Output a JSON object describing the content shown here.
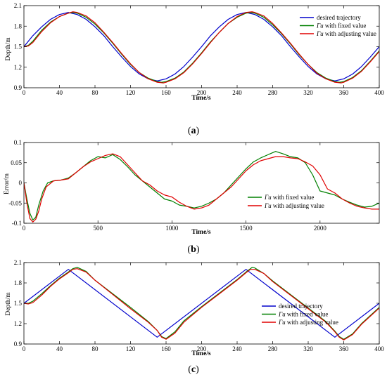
{
  "chart_data": [
    {
      "type": "line",
      "caption": "a",
      "xlabel": "Time/s",
      "ylabel": "Depth/m",
      "xlim": [
        0,
        400
      ],
      "ylim": [
        0.9,
        2.1
      ],
      "xticks": [
        0,
        40,
        80,
        120,
        160,
        200,
        240,
        280,
        320,
        360,
        400
      ],
      "yticks": [
        0.9,
        1.2,
        1.5,
        1.8,
        2.1
      ],
      "ytick_labels": [
        "0.9",
        "1.2",
        "1.5",
        "1.8",
        "2.1"
      ],
      "legend_position": "top-right",
      "series": [
        {
          "name": "desired trajectory",
          "legend_sym": "",
          "legend_rest": "desired trajectory",
          "color": "#0000cc",
          "x": [
            0,
            10,
            20,
            30,
            40,
            50,
            60,
            70,
            80,
            90,
            100,
            110,
            120,
            130,
            140,
            150,
            160,
            170,
            180,
            190,
            200,
            210,
            220,
            230,
            240,
            250,
            260,
            270,
            280,
            290,
            300,
            310,
            320,
            330,
            340,
            350,
            360,
            370,
            380,
            390,
            400
          ],
          "y": [
            1.5,
            1.66,
            1.79,
            1.9,
            1.97,
            2.0,
            1.97,
            1.9,
            1.79,
            1.66,
            1.5,
            1.35,
            1.21,
            1.1,
            1.03,
            1.0,
            1.03,
            1.1,
            1.21,
            1.35,
            1.5,
            1.66,
            1.79,
            1.9,
            1.97,
            2.0,
            1.97,
            1.9,
            1.79,
            1.66,
            1.5,
            1.35,
            1.21,
            1.1,
            1.03,
            1.0,
            1.03,
            1.1,
            1.21,
            1.35,
            1.5
          ]
        },
        {
          "name": "Γu with fixed value",
          "legend_sym": "Γu",
          "legend_rest": " with fixed value",
          "color": "#008000",
          "x": [
            0,
            5,
            10,
            20,
            30,
            40,
            50,
            55,
            60,
            70,
            80,
            90,
            100,
            110,
            120,
            130,
            140,
            150,
            155,
            160,
            170,
            180,
            190,
            200,
            210,
            220,
            230,
            240,
            250,
            255,
            260,
            270,
            280,
            290,
            300,
            310,
            320,
            330,
            340,
            350,
            355,
            360,
            370,
            380,
            390,
            400
          ],
          "y": [
            1.5,
            1.52,
            1.58,
            1.74,
            1.86,
            1.94,
            1.99,
            2.0,
            1.99,
            1.93,
            1.83,
            1.7,
            1.55,
            1.39,
            1.24,
            1.12,
            1.04,
            0.99,
            0.98,
            0.99,
            1.04,
            1.13,
            1.26,
            1.41,
            1.57,
            1.71,
            1.84,
            1.93,
            1.99,
            2.0,
            1.99,
            1.93,
            1.82,
            1.69,
            1.54,
            1.38,
            1.24,
            1.12,
            1.04,
            0.99,
            0.98,
            0.99,
            1.05,
            1.15,
            1.29,
            1.44
          ]
        },
        {
          "name": "Γu with adjusting value",
          "legend_sym": "Γu",
          "legend_rest": " with adjusting value",
          "color": "#e00000",
          "x": [
            0,
            5,
            10,
            20,
            30,
            40,
            50,
            55,
            60,
            70,
            80,
            90,
            100,
            110,
            120,
            130,
            140,
            150,
            157,
            160,
            170,
            180,
            190,
            200,
            210,
            220,
            230,
            240,
            250,
            257,
            260,
            270,
            280,
            290,
            300,
            310,
            320,
            330,
            340,
            350,
            357,
            360,
            370,
            380,
            390,
            400
          ],
          "y": [
            1.5,
            1.51,
            1.56,
            1.72,
            1.85,
            1.94,
            1.99,
            2.01,
            2.0,
            1.95,
            1.85,
            1.71,
            1.56,
            1.4,
            1.25,
            1.12,
            1.03,
            0.98,
            0.97,
            0.98,
            1.03,
            1.12,
            1.25,
            1.4,
            1.56,
            1.71,
            1.84,
            1.94,
            2.0,
            2.01,
            2.0,
            1.95,
            1.84,
            1.7,
            1.55,
            1.39,
            1.24,
            1.11,
            1.03,
            0.98,
            0.97,
            0.98,
            1.04,
            1.14,
            1.28,
            1.43
          ]
        }
      ]
    },
    {
      "type": "line",
      "caption": "b",
      "xlabel": "Time/s",
      "ylabel": "Error/m",
      "xlim": [
        0,
        2400
      ],
      "ylim": [
        -0.1,
        0.1
      ],
      "xticks": [
        0,
        500,
        1000,
        1500,
        2000
      ],
      "yticks": [
        -0.1,
        -0.05,
        0,
        0.05,
        0.1
      ],
      "ytick_labels": [
        "-0.1",
        "-0.05",
        "0",
        "0.05",
        "0.1"
      ],
      "legend_position": "bottom-right",
      "series": [
        {
          "name": "Γu with fixed value",
          "legend_sym": "Γu",
          "legend_rest": " with fixed value",
          "color": "#008000",
          "x": [
            0,
            20,
            40,
            60,
            80,
            100,
            130,
            160,
            200,
            250,
            300,
            350,
            400,
            450,
            500,
            550,
            600,
            650,
            700,
            750,
            800,
            850,
            900,
            950,
            1000,
            1050,
            1100,
            1150,
            1200,
            1250,
            1300,
            1350,
            1400,
            1450,
            1500,
            1550,
            1600,
            1650,
            1700,
            1750,
            1800,
            1850,
            1900,
            1950,
            2000,
            2050,
            2100,
            2150,
            2200,
            2250,
            2300,
            2350,
            2400
          ],
          "y": [
            0.0,
            -0.04,
            -0.075,
            -0.092,
            -0.085,
            -0.055,
            -0.02,
            0.0,
            0.005,
            0.007,
            0.012,
            0.025,
            0.04,
            0.055,
            0.065,
            0.062,
            0.07,
            0.058,
            0.04,
            0.02,
            0.005,
            -0.01,
            -0.025,
            -0.04,
            -0.045,
            -0.055,
            -0.058,
            -0.062,
            -0.058,
            -0.05,
            -0.04,
            -0.025,
            -0.005,
            0.015,
            0.035,
            0.052,
            0.062,
            0.07,
            0.078,
            0.072,
            0.065,
            0.062,
            0.05,
            0.02,
            -0.02,
            -0.025,
            -0.03,
            -0.04,
            -0.048,
            -0.055,
            -0.06,
            -0.058,
            -0.05
          ]
        },
        {
          "name": "Γu with adjusting value",
          "legend_sym": "Γu",
          "legend_rest": " with adjusting value",
          "color": "#e00000",
          "x": [
            0,
            20,
            40,
            60,
            80,
            100,
            120,
            150,
            200,
            250,
            300,
            350,
            400,
            450,
            500,
            550,
            600,
            650,
            700,
            750,
            800,
            850,
            900,
            950,
            1000,
            1050,
            1100,
            1150,
            1200,
            1250,
            1300,
            1350,
            1400,
            1450,
            1500,
            1550,
            1600,
            1650,
            1700,
            1750,
            1800,
            1850,
            1900,
            1950,
            2000,
            2050,
            2100,
            2150,
            2200,
            2250,
            2300,
            2350,
            2400
          ],
          "y": [
            0.0,
            -0.05,
            -0.088,
            -0.097,
            -0.09,
            -0.07,
            -0.04,
            -0.01,
            0.005,
            0.007,
            0.01,
            0.025,
            0.04,
            0.052,
            0.06,
            0.068,
            0.072,
            0.065,
            0.045,
            0.025,
            0.005,
            -0.005,
            -0.02,
            -0.03,
            -0.035,
            -0.048,
            -0.058,
            -0.065,
            -0.062,
            -0.055,
            -0.04,
            -0.025,
            -0.01,
            0.01,
            0.03,
            0.045,
            0.055,
            0.06,
            0.065,
            0.065,
            0.062,
            0.06,
            0.052,
            0.042,
            0.02,
            -0.015,
            -0.025,
            -0.04,
            -0.05,
            -0.058,
            -0.062,
            -0.065,
            -0.065
          ]
        }
      ]
    },
    {
      "type": "line",
      "caption": "c",
      "xlabel": "Time/s",
      "ylabel": "Depth/m",
      "xlim": [
        0,
        400
      ],
      "ylim": [
        0.9,
        2.1
      ],
      "xticks": [
        0,
        40,
        80,
        120,
        160,
        200,
        240,
        280,
        320,
        360,
        400
      ],
      "yticks": [
        0.9,
        1.2,
        1.5,
        1.8,
        2.1
      ],
      "ytick_labels": [
        "0.9",
        "1.2",
        "1.5",
        "1.8",
        "2.1"
      ],
      "legend_position": "bottom-right",
      "series": [
        {
          "name": "desired trajectory",
          "legend_sym": "",
          "legend_rest": "desired trajectory",
          "color": "#0000cc",
          "x": [
            0,
            50,
            150,
            250,
            350,
            400
          ],
          "y": [
            1.5,
            2.0,
            1.0,
            2.0,
            1.0,
            1.5
          ]
        },
        {
          "name": "Γu with fixed value",
          "legend_sym": "Γu",
          "legend_rest": " with fixed value",
          "color": "#008000",
          "x": [
            0,
            5,
            10,
            20,
            30,
            40,
            50,
            55,
            60,
            70,
            80,
            100,
            120,
            140,
            150,
            155,
            160,
            170,
            180,
            200,
            220,
            240,
            250,
            257,
            260,
            270,
            280,
            300,
            320,
            340,
            350,
            355,
            360,
            370,
            380,
            400
          ],
          "y": [
            1.5,
            1.5,
            1.53,
            1.64,
            1.76,
            1.87,
            1.96,
            2.01,
            2.03,
            1.97,
            1.84,
            1.64,
            1.44,
            1.23,
            1.1,
            1.01,
            0.98,
            1.08,
            1.24,
            1.45,
            1.65,
            1.85,
            1.96,
            2.03,
            2.02,
            1.94,
            1.83,
            1.63,
            1.43,
            1.23,
            1.09,
            1.01,
            0.97,
            1.05,
            1.2,
            1.44
          ]
        },
        {
          "name": "Γu with adjusting value",
          "legend_sym": "Γu",
          "legend_rest": " with adjusting value",
          "color": "#e00000",
          "x": [
            0,
            5,
            10,
            20,
            30,
            40,
            50,
            55,
            60,
            70,
            80,
            100,
            120,
            140,
            150,
            155,
            160,
            170,
            180,
            200,
            220,
            240,
            250,
            255,
            260,
            270,
            280,
            300,
            320,
            340,
            350,
            355,
            360,
            370,
            380,
            400
          ],
          "y": [
            1.5,
            1.49,
            1.51,
            1.62,
            1.75,
            1.86,
            1.95,
            2.0,
            2.01,
            1.96,
            1.84,
            1.63,
            1.42,
            1.22,
            1.1,
            1.0,
            0.97,
            1.06,
            1.22,
            1.44,
            1.64,
            1.84,
            1.95,
            2.0,
            2.0,
            1.94,
            1.82,
            1.62,
            1.42,
            1.22,
            1.08,
            1.0,
            0.96,
            1.04,
            1.19,
            1.43
          ]
        }
      ]
    }
  ]
}
